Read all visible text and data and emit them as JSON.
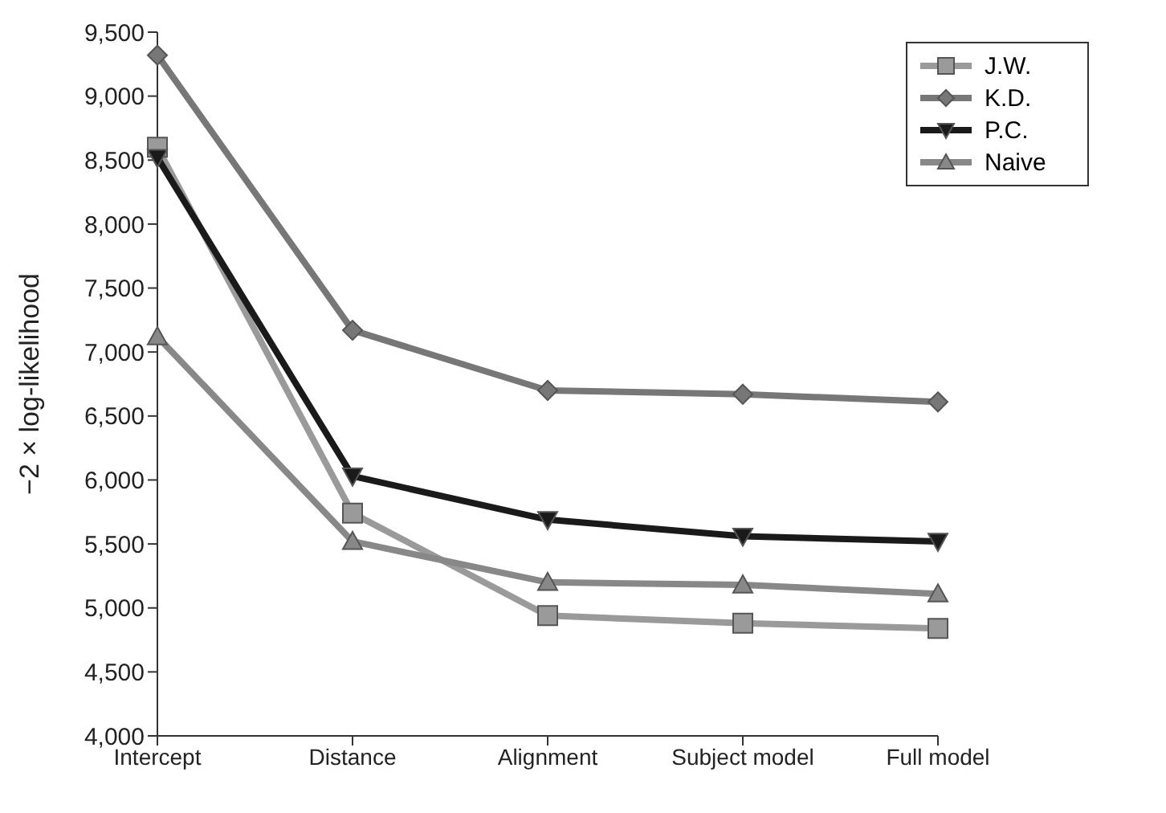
{
  "chart_data": {
    "type": "line",
    "ylabel": "−2 × log-likelihood",
    "categories": [
      "Intercept",
      "Distance",
      "Alignment",
      "Subject model",
      "Full model"
    ],
    "series": [
      {
        "name": "J.W.",
        "color": "#9a9a9a",
        "marker": "square",
        "values": [
          8600,
          5740,
          4940,
          4880,
          4840
        ]
      },
      {
        "name": "K.D.",
        "color": "#777777",
        "marker": "diamond",
        "values": [
          9320,
          7170,
          6700,
          6670,
          6610
        ]
      },
      {
        "name": "P.C.",
        "color": "#1a1a1a",
        "marker": "triangle-down",
        "values": [
          8520,
          6030,
          5690,
          5560,
          5520
        ]
      },
      {
        "name": "Naive",
        "color": "#888888",
        "marker": "triangle",
        "values": [
          7120,
          5520,
          5200,
          5180,
          5110
        ]
      }
    ],
    "ylim": [
      4000,
      9500
    ],
    "yticks": [
      {
        "value": 4000,
        "label": "4,000"
      },
      {
        "value": 4500,
        "label": "4,500"
      },
      {
        "value": 5000,
        "label": "5,000"
      },
      {
        "value": 5500,
        "label": "5,500"
      },
      {
        "value": 6000,
        "label": "6,000"
      },
      {
        "value": 6500,
        "label": "6,500"
      },
      {
        "value": 7000,
        "label": "7,000"
      },
      {
        "value": 7500,
        "label": "7,500"
      },
      {
        "value": 8000,
        "label": "8,000"
      },
      {
        "value": 8500,
        "label": "8,500"
      },
      {
        "value": 9000,
        "label": "9,000"
      },
      {
        "value": 9500,
        "label": "9,500"
      }
    ],
    "grid": false,
    "legend": "top right",
    "line_style": "solid"
  }
}
